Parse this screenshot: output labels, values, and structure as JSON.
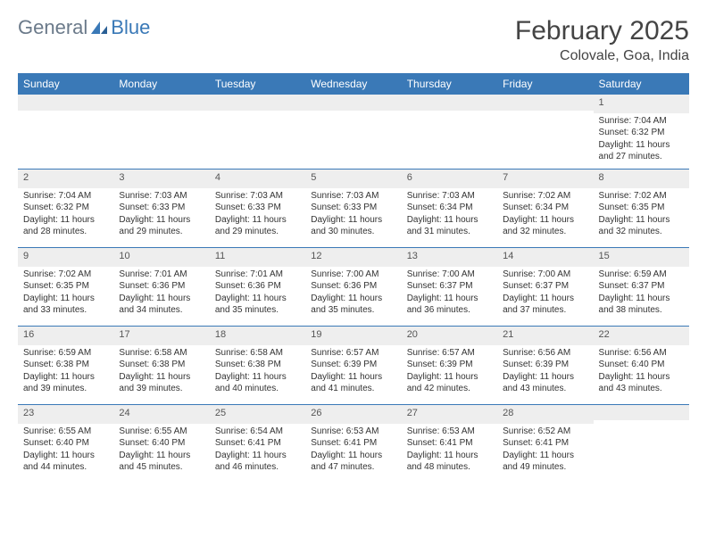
{
  "logo": {
    "text_general": "General",
    "text_blue": "Blue"
  },
  "title": "February 2025",
  "location": "Colovale, Goa, India",
  "colors": {
    "header_bg": "#3a79b7",
    "header_text": "#ffffff",
    "daynum_bg": "#eeeeee",
    "border": "#3a79b7",
    "text": "#333333"
  },
  "day_headers": [
    "Sunday",
    "Monday",
    "Tuesday",
    "Wednesday",
    "Thursday",
    "Friday",
    "Saturday"
  ],
  "weeks": [
    [
      null,
      null,
      null,
      null,
      null,
      null,
      {
        "n": "1",
        "sunrise": "Sunrise: 7:04 AM",
        "sunset": "Sunset: 6:32 PM",
        "daylight": "Daylight: 11 hours and 27 minutes."
      }
    ],
    [
      {
        "n": "2",
        "sunrise": "Sunrise: 7:04 AM",
        "sunset": "Sunset: 6:32 PM",
        "daylight": "Daylight: 11 hours and 28 minutes."
      },
      {
        "n": "3",
        "sunrise": "Sunrise: 7:03 AM",
        "sunset": "Sunset: 6:33 PM",
        "daylight": "Daylight: 11 hours and 29 minutes."
      },
      {
        "n": "4",
        "sunrise": "Sunrise: 7:03 AM",
        "sunset": "Sunset: 6:33 PM",
        "daylight": "Daylight: 11 hours and 29 minutes."
      },
      {
        "n": "5",
        "sunrise": "Sunrise: 7:03 AM",
        "sunset": "Sunset: 6:33 PM",
        "daylight": "Daylight: 11 hours and 30 minutes."
      },
      {
        "n": "6",
        "sunrise": "Sunrise: 7:03 AM",
        "sunset": "Sunset: 6:34 PM",
        "daylight": "Daylight: 11 hours and 31 minutes."
      },
      {
        "n": "7",
        "sunrise": "Sunrise: 7:02 AM",
        "sunset": "Sunset: 6:34 PM",
        "daylight": "Daylight: 11 hours and 32 minutes."
      },
      {
        "n": "8",
        "sunrise": "Sunrise: 7:02 AM",
        "sunset": "Sunset: 6:35 PM",
        "daylight": "Daylight: 11 hours and 32 minutes."
      }
    ],
    [
      {
        "n": "9",
        "sunrise": "Sunrise: 7:02 AM",
        "sunset": "Sunset: 6:35 PM",
        "daylight": "Daylight: 11 hours and 33 minutes."
      },
      {
        "n": "10",
        "sunrise": "Sunrise: 7:01 AM",
        "sunset": "Sunset: 6:36 PM",
        "daylight": "Daylight: 11 hours and 34 minutes."
      },
      {
        "n": "11",
        "sunrise": "Sunrise: 7:01 AM",
        "sunset": "Sunset: 6:36 PM",
        "daylight": "Daylight: 11 hours and 35 minutes."
      },
      {
        "n": "12",
        "sunrise": "Sunrise: 7:00 AM",
        "sunset": "Sunset: 6:36 PM",
        "daylight": "Daylight: 11 hours and 35 minutes."
      },
      {
        "n": "13",
        "sunrise": "Sunrise: 7:00 AM",
        "sunset": "Sunset: 6:37 PM",
        "daylight": "Daylight: 11 hours and 36 minutes."
      },
      {
        "n": "14",
        "sunrise": "Sunrise: 7:00 AM",
        "sunset": "Sunset: 6:37 PM",
        "daylight": "Daylight: 11 hours and 37 minutes."
      },
      {
        "n": "15",
        "sunrise": "Sunrise: 6:59 AM",
        "sunset": "Sunset: 6:37 PM",
        "daylight": "Daylight: 11 hours and 38 minutes."
      }
    ],
    [
      {
        "n": "16",
        "sunrise": "Sunrise: 6:59 AM",
        "sunset": "Sunset: 6:38 PM",
        "daylight": "Daylight: 11 hours and 39 minutes."
      },
      {
        "n": "17",
        "sunrise": "Sunrise: 6:58 AM",
        "sunset": "Sunset: 6:38 PM",
        "daylight": "Daylight: 11 hours and 39 minutes."
      },
      {
        "n": "18",
        "sunrise": "Sunrise: 6:58 AM",
        "sunset": "Sunset: 6:38 PM",
        "daylight": "Daylight: 11 hours and 40 minutes."
      },
      {
        "n": "19",
        "sunrise": "Sunrise: 6:57 AM",
        "sunset": "Sunset: 6:39 PM",
        "daylight": "Daylight: 11 hours and 41 minutes."
      },
      {
        "n": "20",
        "sunrise": "Sunrise: 6:57 AM",
        "sunset": "Sunset: 6:39 PM",
        "daylight": "Daylight: 11 hours and 42 minutes."
      },
      {
        "n": "21",
        "sunrise": "Sunrise: 6:56 AM",
        "sunset": "Sunset: 6:39 PM",
        "daylight": "Daylight: 11 hours and 43 minutes."
      },
      {
        "n": "22",
        "sunrise": "Sunrise: 6:56 AM",
        "sunset": "Sunset: 6:40 PM",
        "daylight": "Daylight: 11 hours and 43 minutes."
      }
    ],
    [
      {
        "n": "23",
        "sunrise": "Sunrise: 6:55 AM",
        "sunset": "Sunset: 6:40 PM",
        "daylight": "Daylight: 11 hours and 44 minutes."
      },
      {
        "n": "24",
        "sunrise": "Sunrise: 6:55 AM",
        "sunset": "Sunset: 6:40 PM",
        "daylight": "Daylight: 11 hours and 45 minutes."
      },
      {
        "n": "25",
        "sunrise": "Sunrise: 6:54 AM",
        "sunset": "Sunset: 6:41 PM",
        "daylight": "Daylight: 11 hours and 46 minutes."
      },
      {
        "n": "26",
        "sunrise": "Sunrise: 6:53 AM",
        "sunset": "Sunset: 6:41 PM",
        "daylight": "Daylight: 11 hours and 47 minutes."
      },
      {
        "n": "27",
        "sunrise": "Sunrise: 6:53 AM",
        "sunset": "Sunset: 6:41 PM",
        "daylight": "Daylight: 11 hours and 48 minutes."
      },
      {
        "n": "28",
        "sunrise": "Sunrise: 6:52 AM",
        "sunset": "Sunset: 6:41 PM",
        "daylight": "Daylight: 11 hours and 49 minutes."
      },
      null
    ]
  ]
}
